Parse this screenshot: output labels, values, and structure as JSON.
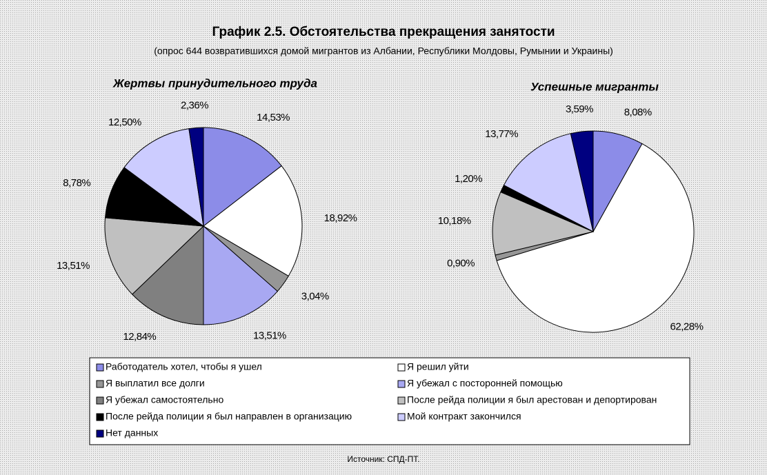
{
  "title": "График 2.5. Обстоятельства прекращения занятости",
  "subtitle": "(опрос 644 возвратившихся домой мигрантов из Албании, Республики Молдовы, Румынии и Украины)",
  "source": "Источник: СПД-ПТ.",
  "legend": {
    "categories": [
      "Работодатель хотел, чтобы я ушел",
      "Я решил уйти",
      "Я выплатил все долги",
      "Я убежал с посторонней помощью",
      "Я убежал самостоятельно",
      "После рейда полиции я был арестован и депортирован",
      "После рейда полиции я был направлен в организацию",
      "Мой контракт закончился",
      "Нет данных"
    ],
    "colors": [
      "#8c8ce8",
      "#ffffff",
      "#969696",
      "#a8a8f2",
      "#808080",
      "#c0c0c0",
      "#000000",
      "#ccccff",
      "#000080"
    ]
  },
  "chart_data": [
    {
      "type": "pie",
      "title": "Жертвы принудительного труда",
      "values": [
        14.53,
        18.92,
        3.04,
        13.51,
        12.84,
        13.51,
        8.78,
        12.5,
        2.36
      ],
      "value_labels": [
        "14,53%",
        "18,92%",
        "3,04%",
        "13,51%",
        "12,84%",
        "13,51%",
        "8,78%",
        "12,50%",
        "2,36%"
      ]
    },
    {
      "type": "pie",
      "title": "Успешные мигранты",
      "values": [
        8.08,
        62.28,
        0.9,
        null,
        null,
        10.18,
        1.2,
        13.77,
        3.59
      ],
      "value_labels": [
        "8,08%",
        "62,28%",
        "0,90%",
        null,
        null,
        "10,18%",
        "1,20%",
        "13,77%",
        "3,59%"
      ]
    }
  ]
}
